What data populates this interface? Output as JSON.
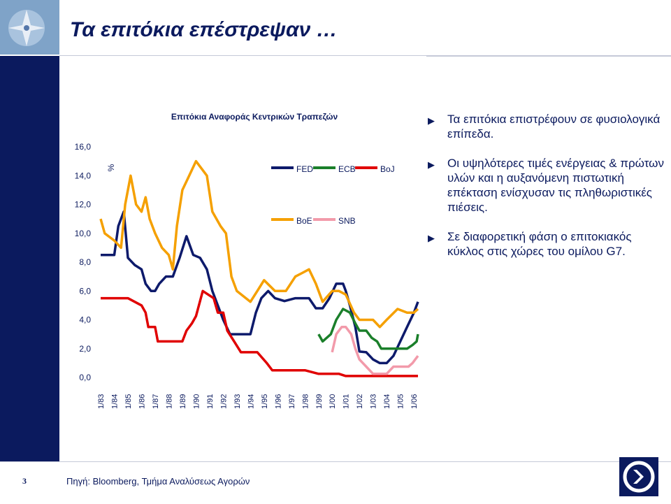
{
  "slide": {
    "title": "Τα επιτόκια επέστρεψαν …",
    "page_number": "3",
    "source": "Πηγή: Bloomberg, Τμήμα Αναλύσεως Αγορών"
  },
  "bullets": [
    "Τα επιτόκια επιστρέφουν σε φυσιολογικά επίπεδα.",
    "Οι υψηλότερες τιμές ενέργειας & πρώτων υλών και η αυξανόμενη πιστωτική επέκταση ενίσχυσαν τις πληθωριστικές πιέσεις.",
    "Σε διαφορετική φάση ο επιτοκιακός κύκλος στις χώρες του ομίλου G7."
  ],
  "colors": {
    "navy": "#0b1a5e",
    "FED": "#0d1a6b",
    "ECB": "#1a7f2a",
    "BoJ": "#e00000",
    "BoE": "#f5a000",
    "SNB": "#f29aaa"
  },
  "chart_data": {
    "type": "line",
    "title": "Επιτόκια Αναφοράς Κεντρικών Τραπεζών",
    "ylabel": "%",
    "ylim": [
      0,
      16
    ],
    "yticks": [
      "16,0",
      "14,0",
      "12,0",
      "10,0",
      "8,0",
      "6,0",
      "4,0",
      "2,0",
      "0,0"
    ],
    "categories": [
      "1/83",
      "1/84",
      "1/85",
      "1/86",
      "1/87",
      "1/88",
      "1/89",
      "1/90",
      "1/91",
      "1/92",
      "1/93",
      "1/94",
      "1/95",
      "1/96",
      "1/97",
      "1/98",
      "1/99",
      "1/00",
      "1/01",
      "1/02",
      "1/03",
      "1/04",
      "1/05",
      "1/06"
    ],
    "legend": [
      "FED",
      "ECB",
      "BoJ",
      "BoE",
      "SNB"
    ],
    "series": [
      {
        "name": "FED",
        "points": [
          [
            1983.0,
            8.5
          ],
          [
            1984.0,
            8.5
          ],
          [
            1984.3,
            10.5
          ],
          [
            1984.7,
            11.5
          ],
          [
            1985.0,
            8.3
          ],
          [
            1985.5,
            7.8
          ],
          [
            1986.0,
            7.5
          ],
          [
            1986.3,
            6.5
          ],
          [
            1986.7,
            6.0
          ],
          [
            1987.0,
            6.0
          ],
          [
            1987.3,
            6.5
          ],
          [
            1987.8,
            7.0
          ],
          [
            1988.3,
            7.0
          ],
          [
            1988.8,
            8.3
          ],
          [
            1989.3,
            9.8
          ],
          [
            1989.8,
            8.5
          ],
          [
            1990.3,
            8.3
          ],
          [
            1990.8,
            7.5
          ],
          [
            1991.2,
            6.0
          ],
          [
            1991.6,
            5.0
          ],
          [
            1992.0,
            4.0
          ],
          [
            1992.5,
            3.0
          ],
          [
            1993.0,
            3.0
          ],
          [
            1994.0,
            3.0
          ],
          [
            1994.4,
            4.5
          ],
          [
            1994.8,
            5.5
          ],
          [
            1995.3,
            6.0
          ],
          [
            1995.8,
            5.5
          ],
          [
            1996.5,
            5.3
          ],
          [
            1997.3,
            5.5
          ],
          [
            1998.3,
            5.5
          ],
          [
            1998.8,
            4.8
          ],
          [
            1999.3,
            4.8
          ],
          [
            1999.8,
            5.5
          ],
          [
            2000.3,
            6.5
          ],
          [
            2000.8,
            6.5
          ],
          [
            2001.0,
            6.0
          ],
          [
            2001.3,
            5.0
          ],
          [
            2001.7,
            3.5
          ],
          [
            2002.0,
            1.8
          ],
          [
            2002.5,
            1.75
          ],
          [
            2003.0,
            1.25
          ],
          [
            2003.5,
            1.0
          ],
          [
            2004.0,
            1.0
          ],
          [
            2004.5,
            1.5
          ],
          [
            2005.0,
            2.5
          ],
          [
            2005.5,
            3.5
          ],
          [
            2006.0,
            4.5
          ],
          [
            2006.3,
            5.25
          ]
        ]
      },
      {
        "name": "ECB",
        "points": [
          [
            1999.0,
            3.0
          ],
          [
            1999.3,
            2.5
          ],
          [
            1999.9,
            3.0
          ],
          [
            2000.3,
            4.0
          ],
          [
            2000.8,
            4.75
          ],
          [
            2001.3,
            4.5
          ],
          [
            2001.7,
            3.75
          ],
          [
            2002.0,
            3.25
          ],
          [
            2002.5,
            3.25
          ],
          [
            2002.9,
            2.75
          ],
          [
            2003.3,
            2.5
          ],
          [
            2003.6,
            2.0
          ],
          [
            2004.0,
            2.0
          ],
          [
            2005.0,
            2.0
          ],
          [
            2005.5,
            2.0
          ],
          [
            2005.9,
            2.25
          ],
          [
            2006.2,
            2.5
          ],
          [
            2006.3,
            3.0
          ]
        ]
      },
      {
        "name": "BoJ",
        "points": [
          [
            1983.0,
            5.5
          ],
          [
            1984.0,
            5.5
          ],
          [
            1985.0,
            5.5
          ],
          [
            1986.0,
            5.0
          ],
          [
            1986.3,
            4.5
          ],
          [
            1986.5,
            3.5
          ],
          [
            1987.0,
            3.5
          ],
          [
            1987.2,
            2.5
          ],
          [
            1988.0,
            2.5
          ],
          [
            1989.0,
            2.5
          ],
          [
            1989.3,
            3.25
          ],
          [
            1989.7,
            3.75
          ],
          [
            1990.0,
            4.25
          ],
          [
            1990.5,
            6.0
          ],
          [
            1991.3,
            5.5
          ],
          [
            1991.6,
            4.5
          ],
          [
            1992.0,
            4.5
          ],
          [
            1992.3,
            3.25
          ],
          [
            1992.8,
            2.5
          ],
          [
            1993.3,
            1.75
          ],
          [
            1994.5,
            1.75
          ],
          [
            1995.2,
            1.0
          ],
          [
            1995.6,
            0.5
          ],
          [
            1997.0,
            0.5
          ],
          [
            1998.0,
            0.5
          ],
          [
            1999.0,
            0.25
          ],
          [
            2000.5,
            0.25
          ],
          [
            2001.0,
            0.1
          ],
          [
            2001.3,
            0.1
          ],
          [
            2006.0,
            0.1
          ],
          [
            2006.3,
            0.1
          ]
        ]
      },
      {
        "name": "BoE",
        "points": [
          [
            1983.0,
            11.0
          ],
          [
            1983.3,
            10.0
          ],
          [
            1984.0,
            9.5
          ],
          [
            1984.5,
            9.0
          ],
          [
            1984.8,
            12.0
          ],
          [
            1985.2,
            14.0
          ],
          [
            1985.6,
            12.0
          ],
          [
            1986.0,
            11.5
          ],
          [
            1986.3,
            12.5
          ],
          [
            1986.6,
            11.0
          ],
          [
            1987.0,
            10.0
          ],
          [
            1987.5,
            9.0
          ],
          [
            1988.0,
            8.5
          ],
          [
            1988.3,
            7.5
          ],
          [
            1988.6,
            10.5
          ],
          [
            1989.0,
            13.0
          ],
          [
            1989.5,
            14.0
          ],
          [
            1990.0,
            15.0
          ],
          [
            1990.8,
            14.0
          ],
          [
            1991.2,
            11.5
          ],
          [
            1991.8,
            10.5
          ],
          [
            1992.2,
            10.0
          ],
          [
            1992.6,
            7.0
          ],
          [
            1993.0,
            6.0
          ],
          [
            1994.0,
            5.25
          ],
          [
            1994.5,
            6.0
          ],
          [
            1995.0,
            6.75
          ],
          [
            1995.8,
            6.0
          ],
          [
            1996.6,
            6.0
          ],
          [
            1997.3,
            7.0
          ],
          [
            1997.8,
            7.25
          ],
          [
            1998.3,
            7.5
          ],
          [
            1998.8,
            6.5
          ],
          [
            1999.3,
            5.25
          ],
          [
            2000.0,
            6.0
          ],
          [
            2000.5,
            6.0
          ],
          [
            2001.0,
            5.75
          ],
          [
            2001.6,
            4.5
          ],
          [
            2002.0,
            4.0
          ],
          [
            2003.0,
            4.0
          ],
          [
            2003.5,
            3.5
          ],
          [
            2004.0,
            4.0
          ],
          [
            2004.8,
            4.75
          ],
          [
            2005.5,
            4.5
          ],
          [
            2006.0,
            4.5
          ],
          [
            2006.3,
            4.75
          ]
        ]
      },
      {
        "name": "SNB",
        "points": [
          [
            2000.0,
            1.75
          ],
          [
            2000.3,
            3.0
          ],
          [
            2000.7,
            3.5
          ],
          [
            2001.0,
            3.5
          ],
          [
            2001.4,
            3.0
          ],
          [
            2001.7,
            2.0
          ],
          [
            2002.0,
            1.25
          ],
          [
            2002.5,
            0.75
          ],
          [
            2003.0,
            0.25
          ],
          [
            2004.0,
            0.25
          ],
          [
            2004.5,
            0.75
          ],
          [
            2005.0,
            0.75
          ],
          [
            2005.6,
            0.75
          ],
          [
            2005.9,
            1.0
          ],
          [
            2006.1,
            1.25
          ],
          [
            2006.3,
            1.5
          ]
        ]
      }
    ]
  }
}
